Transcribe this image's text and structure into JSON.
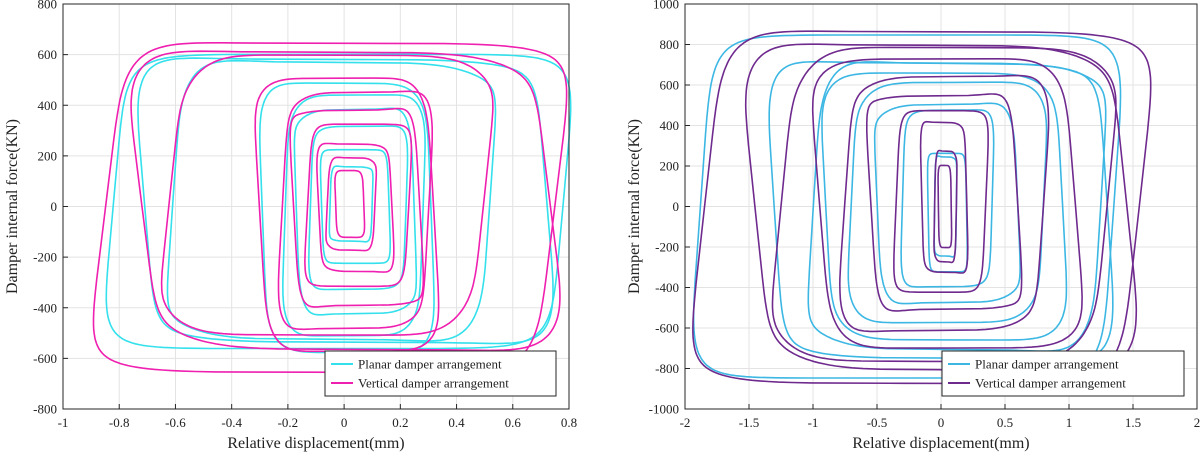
{
  "chart_data": [
    {
      "type": "line",
      "xlabel": "Relative displacement(mm)",
      "ylabel": "Damper internal force(KN)",
      "xlim": [
        -1,
        0.8
      ],
      "ylim": [
        -800,
        800
      ],
      "xticks": [
        -1,
        -0.8,
        -0.6,
        -0.4,
        -0.2,
        0,
        0.2,
        0.4,
        0.6,
        0.8
      ],
      "yticks": [
        -800,
        -600,
        -400,
        -200,
        0,
        200,
        400,
        600,
        800
      ],
      "xtick_labels": [
        "-1",
        "-0.8",
        "-0.6",
        "-0.4",
        "-0.2",
        "0",
        "0.2",
        "0.4",
        "0.6",
        "0.8"
      ],
      "ytick_labels": [
        "-800",
        "-600",
        "-400",
        "-200",
        "0",
        "200",
        "400",
        "600",
        "800"
      ],
      "grid": true,
      "legend_position": "bottom-right",
      "series": [
        {
          "name": "Planar damper arrangement",
          "color": "#33e0ec",
          "loops": [
            {
              "xmin": -0.82,
              "xmax": 0.78,
              "ymin": -570,
              "ymax": 610
            },
            {
              "xmin": -0.71,
              "xmax": 0.72,
              "ymin": -545,
              "ymax": 590
            },
            {
              "xmin": -0.61,
              "xmax": 0.52,
              "ymin": -520,
              "ymax": 565
            },
            {
              "xmin": -0.29,
              "xmax": 0.31,
              "ymin": -570,
              "ymax": 480
            },
            {
              "xmin": -0.21,
              "xmax": 0.28,
              "ymin": -500,
              "ymax": 430
            },
            {
              "xmin": -0.17,
              "xmax": 0.25,
              "ymin": -420,
              "ymax": 380
            },
            {
              "xmin": -0.12,
              "xmax": 0.22,
              "ymin": -330,
              "ymax": 320
            },
            {
              "xmin": -0.08,
              "xmax": 0.16,
              "ymin": -230,
              "ymax": 230
            },
            {
              "xmin": -0.05,
              "xmax": 0.1,
              "ymin": -140,
              "ymax": 160
            }
          ]
        },
        {
          "name": "Vertical damper arrangement",
          "color": "#ef1fb0",
          "loops": [
            {
              "xmin": -0.85,
              "xmax": 0.75,
              "ymin": -660,
              "ymax": 650
            },
            {
              "xmin": -0.72,
              "xmax": 0.73,
              "ymin": -560,
              "ymax": 605
            },
            {
              "xmin": -0.62,
              "xmax": 0.5,
              "ymin": -490,
              "ymax": 580
            },
            {
              "xmin": -0.3,
              "xmax": 0.32,
              "ymin": -565,
              "ymax": 500
            },
            {
              "xmin": -0.22,
              "xmax": 0.3,
              "ymin": -480,
              "ymax": 450
            },
            {
              "xmin": -0.18,
              "xmax": 0.27,
              "ymin": -400,
              "ymax": 390
            },
            {
              "xmin": -0.13,
              "xmax": 0.23,
              "ymin": -320,
              "ymax": 330
            },
            {
              "xmin": -0.09,
              "xmax": 0.17,
              "ymin": -260,
              "ymax": 250
            },
            {
              "xmin": -0.06,
              "xmax": 0.11,
              "ymin": -170,
              "ymax": 190
            },
            {
              "xmin": -0.03,
              "xmax": 0.07,
              "ymin": -120,
              "ymax": 140
            }
          ]
        }
      ]
    },
    {
      "type": "line",
      "xlabel": "Relative displacement(mm)",
      "ylabel": "Damper internal force(KN)",
      "xlim": [
        -2,
        2
      ],
      "ylim": [
        -1000,
        1000
      ],
      "xticks": [
        -2,
        -1.5,
        -1,
        -0.5,
        0,
        0.5,
        1,
        1.5,
        2
      ],
      "yticks": [
        -1000,
        -800,
        -600,
        -400,
        -200,
        0,
        200,
        400,
        600,
        800,
        1000
      ],
      "xtick_labels": [
        "-2",
        "-1.5",
        "-1",
        "-0.5",
        "0",
        "0.5",
        "1",
        "1.5",
        "2"
      ],
      "ytick_labels": [
        "-1000",
        "-800",
        "-600",
        "-400",
        "-200",
        "0",
        "200",
        "400",
        "600",
        "800",
        "1000"
      ],
      "grid": true,
      "legend_position": "bottom-right",
      "series": [
        {
          "name": "Planar damper arrangement",
          "color": "#3cb7e4",
          "loops": [
            {
              "xmin": -1.88,
              "xmax": 1.35,
              "ymin": -860,
              "ymax": 860
            },
            {
              "xmin": -1.3,
              "xmax": 1.3,
              "ymin": -760,
              "ymax": 720
            },
            {
              "xmin": -1.0,
              "xmax": 1.25,
              "ymin": -700,
              "ymax": 700
            },
            {
              "xmin": -0.9,
              "xmax": 0.95,
              "ymin": -650,
              "ymax": 650
            },
            {
              "xmin": -0.7,
              "xmax": 0.8,
              "ymin": -560,
              "ymax": 600
            },
            {
              "xmin": -0.5,
              "xmax": 0.6,
              "ymin": -470,
              "ymax": 500
            },
            {
              "xmin": -0.3,
              "xmax": 0.4,
              "ymin": -400,
              "ymax": 480
            },
            {
              "xmin": -0.1,
              "xmax": 0.2,
              "ymin": -330,
              "ymax": 270
            },
            {
              "xmin": -0.05,
              "xmax": 0.12,
              "ymin": -250,
              "ymax": 250
            }
          ]
        },
        {
          "name": "Vertical damper arrangement",
          "color": "#6f2a8e",
          "loops": [
            {
              "xmin": -1.85,
              "xmax": 1.55,
              "ymin": -880,
              "ymax": 870
            },
            {
              "xmin": -1.45,
              "xmax": 1.45,
              "ymin": -800,
              "ymax": 790
            },
            {
              "xmin": -1.25,
              "xmax": 1.3,
              "ymin": -740,
              "ymax": 760
            },
            {
              "xmin": -0.95,
              "xmax": 1.05,
              "ymin": -690,
              "ymax": 720
            },
            {
              "xmin": -0.75,
              "xmax": 0.8,
              "ymin": -610,
              "ymax": 640
            },
            {
              "xmin": -0.55,
              "xmax": 0.6,
              "ymin": -520,
              "ymax": 560
            },
            {
              "xmin": -0.35,
              "xmax": 0.35,
              "ymin": -430,
              "ymax": 480
            },
            {
              "xmin": -0.15,
              "xmax": 0.2,
              "ymin": -330,
              "ymax": 420
            },
            {
              "xmin": -0.05,
              "xmax": 0.12,
              "ymin": -270,
              "ymax": 270
            },
            {
              "xmin": -0.02,
              "xmax": 0.08,
              "ymin": -200,
              "ymax": 200
            }
          ]
        }
      ]
    }
  ]
}
